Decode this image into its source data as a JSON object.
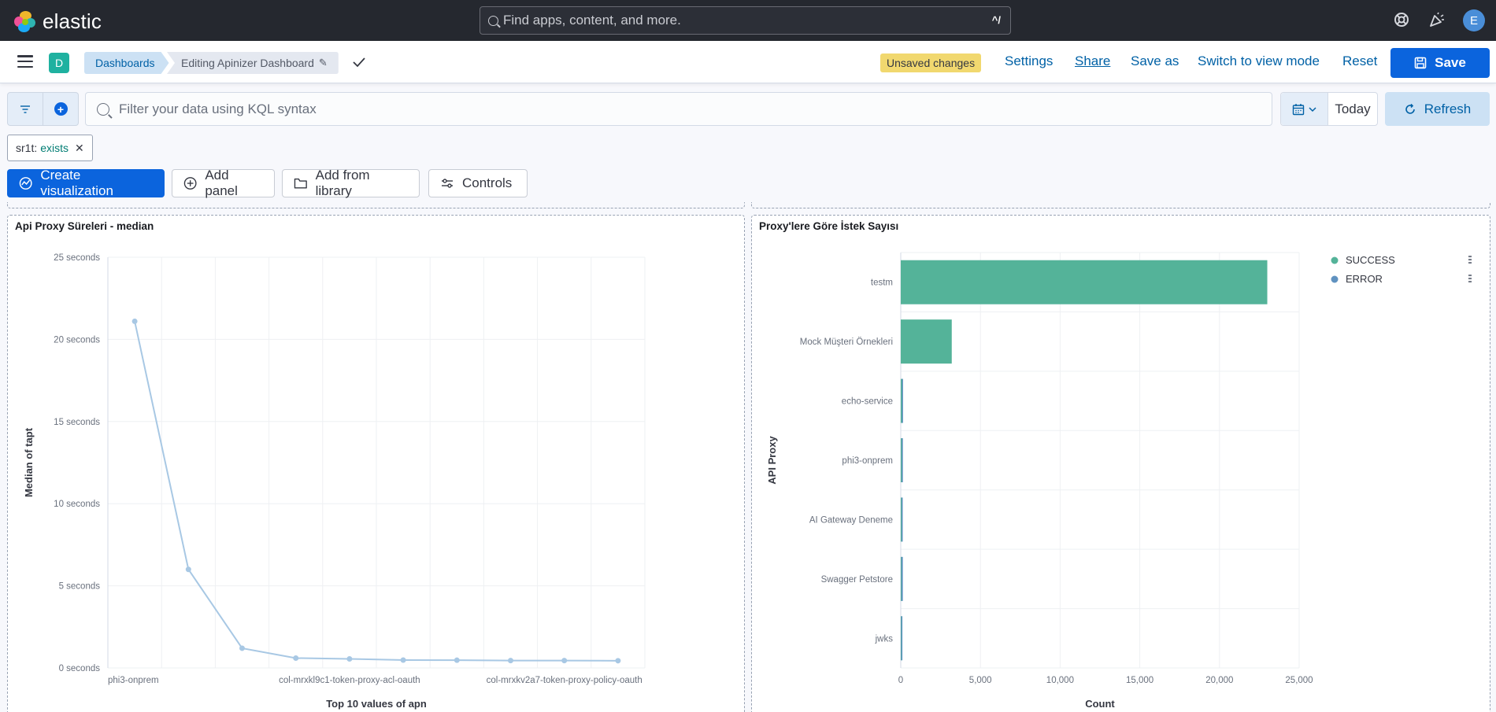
{
  "header": {
    "logo_text": "elastic",
    "search_placeholder": "Find apps, content, and more.",
    "search_shortcut": "^/",
    "avatar_initial": "E",
    "icons": [
      "help-icon",
      "news-feed-icon"
    ]
  },
  "subbar": {
    "space_initial": "D",
    "breadcrumbs": [
      "Dashboards",
      "Editing Apinizer Dashboard"
    ],
    "unsaved_badge": "Unsaved changes",
    "links": {
      "settings": "Settings",
      "share": "Share",
      "save_as": "Save as",
      "switch_mode": "Switch to view mode",
      "reset": "Reset"
    },
    "save_label": "Save"
  },
  "query_bar": {
    "kql_placeholder": "Filter your data using KQL syntax",
    "date_label": "Today",
    "refresh_label": "Refresh"
  },
  "filters": [
    {
      "field": "sr1t:",
      "value": "exists"
    }
  ],
  "toolbar": {
    "create_visualization": "Create visualization",
    "add_panel": "Add panel",
    "add_from_library": "Add from library",
    "controls": "Controls"
  },
  "colors": {
    "accent": "#0b64dd",
    "line_series": "#a8c8e4",
    "success": "#54b399",
    "error": "#6092c0"
  },
  "panels": {
    "left": {
      "title": "Api Proxy Süreleri - median",
      "chart_data": {
        "type": "line",
        "xlabel": "Top 10 values of apn",
        "ylabel": "Median of tapt",
        "x_tick_labels": [
          "phi3-onprem",
          "col-mrxkl9c1-token-proxy-acl-oauth",
          "col-mrxkv2a7-token-proxy-policy-oauth"
        ],
        "y_tick_labels": [
          "0 seconds",
          "5 seconds",
          "10 seconds",
          "15 seconds",
          "20 seconds",
          "25 seconds"
        ],
        "ylim": [
          0,
          25
        ],
        "grid": true,
        "series": [
          {
            "values": [
              21.1,
              6.0,
              1.2,
              0.6,
              0.55,
              0.48,
              0.47,
              0.45,
              0.45,
              0.44
            ]
          }
        ]
      }
    },
    "right": {
      "title": "Proxy'lere Göre İstek Sayısı",
      "chart_data": {
        "type": "bar",
        "orientation": "horizontal",
        "xlabel": "Count",
        "ylabel": "API Proxy",
        "categories": [
          "testm",
          "Mock Müşteri Örnekleri",
          "echo-service",
          "phi3-onprem",
          "AI Gateway Deneme",
          "Swagger Petstore",
          "jwks"
        ],
        "x_tick_labels": [
          "0",
          "5,000",
          "10,000",
          "15,000",
          "20,000",
          "25,000"
        ],
        "xlim": [
          0,
          25000
        ],
        "grid": true,
        "legend_position": "top-right",
        "series": [
          {
            "name": "SUCCESS",
            "color": "#54b399",
            "values": [
              23000,
              3200,
              70,
              60,
              50,
              40,
              30
            ]
          },
          {
            "name": "ERROR",
            "color": "#6092c0",
            "values": [
              0,
              0,
              10,
              10,
              10,
              90,
              10
            ]
          }
        ]
      }
    }
  }
}
